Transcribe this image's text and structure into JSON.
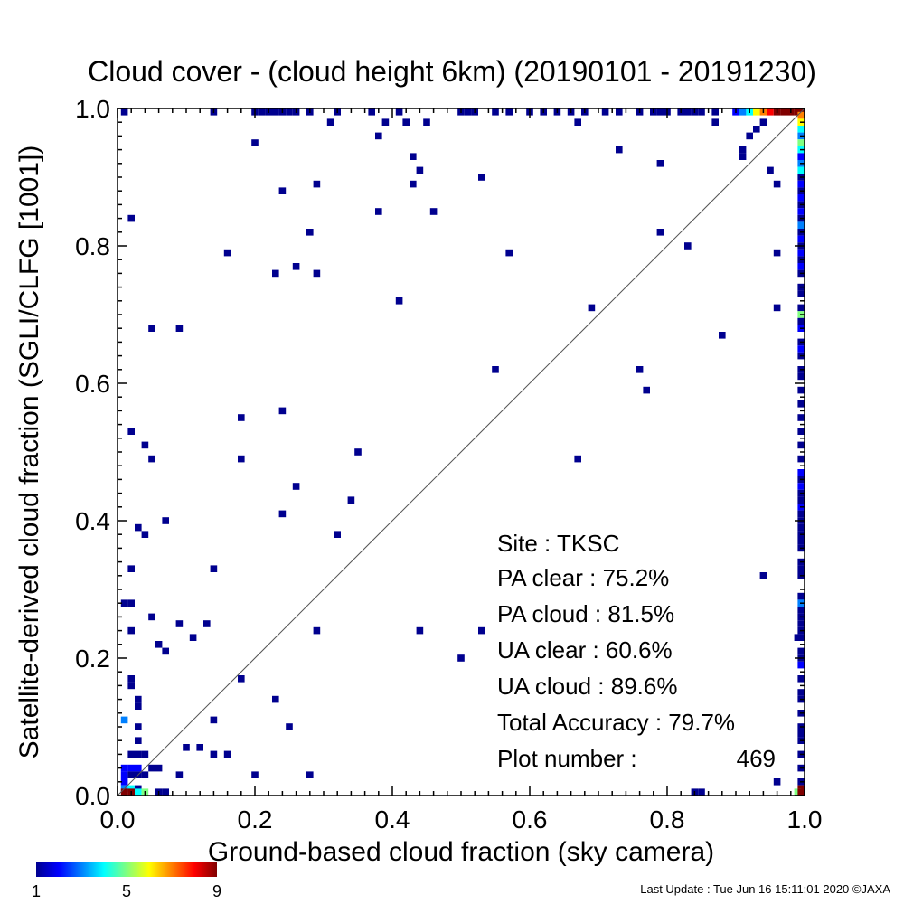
{
  "chart_data": {
    "type": "heatmap",
    "title": "Cloud cover - (cloud height 6km)  (20190101 - 20191230)",
    "xlabel": "Ground-based cloud fraction (sky camera)",
    "ylabel": "Satellite-derived cloud fraction (SGLI/CLFG [1001])",
    "xlim": [
      0,
      1
    ],
    "ylim": [
      0,
      1
    ],
    "x_ticks": [
      "0.0",
      "0.2",
      "0.4",
      "0.6",
      "0.8",
      "1.0"
    ],
    "y_ticks": [
      "0.0",
      "0.2",
      "0.4",
      "0.6",
      "0.8",
      "1.0"
    ],
    "reference_line": "y = x",
    "colorbar": {
      "min": 1,
      "max": 9,
      "tick_labels": [
        "1",
        "5",
        "9"
      ]
    },
    "stats": {
      "site": "Site : TKSC",
      "pa_clear": "PA clear :  75.2%",
      "pa_cloud": "PA cloud :  81.5%",
      "ua_clear": "UA clear :  60.6%",
      "ua_cloud": "UA cloud :  89.6%",
      "total_accuracy": "Total Accuracy :  79.7%",
      "plot_number_label": "Plot number :",
      "plot_number_value": "469"
    },
    "cells": [
      [
        0.02,
        0.84,
        1
      ],
      [
        0.02,
        0.53,
        1
      ],
      [
        0.04,
        0.51,
        1
      ],
      [
        0.05,
        0.49,
        1
      ],
      [
        0.03,
        0.39,
        1
      ],
      [
        0.04,
        0.38,
        1
      ],
      [
        0.07,
        0.4,
        1
      ],
      [
        0.02,
        0.33,
        1
      ],
      [
        0.01,
        0.28,
        1
      ],
      [
        0.02,
        0.28,
        1
      ],
      [
        0.02,
        0.24,
        1
      ],
      [
        0.05,
        0.26,
        1
      ],
      [
        0.06,
        0.22,
        1
      ],
      [
        0.07,
        0.21,
        1
      ],
      [
        0.09,
        0.25,
        1
      ],
      [
        0.11,
        0.23,
        1
      ],
      [
        0.13,
        0.25,
        1
      ],
      [
        0.14,
        0.33,
        1
      ],
      [
        0.02,
        0.17,
        1
      ],
      [
        0.02,
        0.16,
        1
      ],
      [
        0.03,
        0.14,
        1
      ],
      [
        0.03,
        0.13,
        1
      ],
      [
        0.01,
        0.11,
        3
      ],
      [
        0.03,
        0.1,
        1
      ],
      [
        0.03,
        0.08,
        1
      ],
      [
        0.02,
        0.06,
        1
      ],
      [
        0.03,
        0.06,
        1
      ],
      [
        0.04,
        0.06,
        1
      ],
      [
        0.01,
        0.04,
        2
      ],
      [
        0.02,
        0.04,
        2
      ],
      [
        0.03,
        0.04,
        2
      ],
      [
        0.01,
        0.03,
        2
      ],
      [
        0.02,
        0.03,
        1
      ],
      [
        0.03,
        0.03,
        1
      ],
      [
        0.04,
        0.03,
        1
      ],
      [
        0.01,
        0.02,
        2
      ],
      [
        0.01,
        0.01,
        3
      ],
      [
        0.02,
        0.01,
        4
      ],
      [
        0.03,
        0.01,
        1
      ],
      [
        0.01,
        0.0,
        9
      ],
      [
        0.02,
        0.0,
        9
      ],
      [
        0.03,
        0.0,
        4
      ],
      [
        0.04,
        0.0,
        5
      ],
      [
        0.06,
        0.0,
        1
      ],
      [
        0.07,
        0.0,
        1
      ],
      [
        0.05,
        0.04,
        1
      ],
      [
        0.06,
        0.04,
        1
      ],
      [
        0.09,
        0.03,
        1
      ],
      [
        0.1,
        0.07,
        1
      ],
      [
        0.12,
        0.07,
        1
      ],
      [
        0.14,
        0.06,
        1
      ],
      [
        0.16,
        0.06,
        1
      ],
      [
        0.14,
        0.11,
        1
      ],
      [
        0.18,
        0.17,
        1
      ],
      [
        0.2,
        0.03,
        1
      ],
      [
        0.23,
        0.14,
        1
      ],
      [
        0.25,
        0.1,
        1
      ],
      [
        0.28,
        0.03,
        1
      ],
      [
        0.29,
        0.24,
        1
      ],
      [
        0.44,
        0.24,
        1
      ],
      [
        0.5,
        0.2,
        1
      ],
      [
        0.53,
        0.24,
        1
      ],
      [
        0.32,
        0.38,
        1
      ],
      [
        0.34,
        0.43,
        1
      ],
      [
        0.35,
        0.5,
        1
      ],
      [
        0.24,
        0.41,
        1
      ],
      [
        0.26,
        0.45,
        1
      ],
      [
        0.18,
        0.49,
        1
      ],
      [
        0.18,
        0.55,
        1
      ],
      [
        0.24,
        0.56,
        1
      ],
      [
        0.05,
        0.68,
        1
      ],
      [
        0.09,
        0.68,
        1
      ],
      [
        0.41,
        0.72,
        1
      ],
      [
        0.16,
        0.79,
        1
      ],
      [
        0.23,
        0.76,
        1
      ],
      [
        0.26,
        0.77,
        1
      ],
      [
        0.29,
        0.76,
        1
      ],
      [
        0.28,
        0.82,
        1
      ],
      [
        0.24,
        0.88,
        1
      ],
      [
        0.29,
        0.89,
        1
      ],
      [
        0.38,
        0.85,
        1
      ],
      [
        0.43,
        0.89,
        1
      ],
      [
        0.44,
        0.91,
        1
      ],
      [
        0.43,
        0.93,
        1
      ],
      [
        0.46,
        0.85,
        1
      ],
      [
        0.53,
        0.9,
        1
      ],
      [
        0.57,
        0.79,
        1
      ],
      [
        0.2,
        0.95,
        1
      ],
      [
        0.38,
        0.96,
        1
      ],
      [
        0.31,
        0.98,
        1
      ],
      [
        0.39,
        0.98,
        1
      ],
      [
        0.42,
        0.98,
        1
      ],
      [
        0.45,
        0.98,
        1
      ],
      [
        0.67,
        0.98,
        1
      ],
      [
        0.73,
        0.94,
        1
      ],
      [
        0.79,
        0.92,
        1
      ],
      [
        0.79,
        0.82,
        1
      ],
      [
        0.83,
        0.8,
        1
      ],
      [
        0.88,
        0.67,
        1
      ],
      [
        0.69,
        0.71,
        1
      ],
      [
        0.55,
        0.62,
        1
      ],
      [
        0.67,
        0.49,
        1
      ],
      [
        0.76,
        0.62,
        1
      ],
      [
        0.77,
        0.59,
        1
      ],
      [
        0.94,
        0.32,
        1
      ],
      [
        0.96,
        0.71,
        1
      ],
      [
        0.96,
        0.79,
        1
      ],
      [
        0.91,
        0.93,
        1
      ],
      [
        0.91,
        0.94,
        1
      ],
      [
        0.95,
        0.91,
        1
      ],
      [
        0.96,
        0.89,
        1
      ],
      [
        0.96,
        0.02,
        1
      ],
      [
        0.85,
        0.0,
        1
      ],
      [
        0.84,
        0.0,
        1
      ],
      [
        0.87,
        0.98,
        1
      ],
      [
        0.92,
        0.96,
        1
      ],
      [
        0.93,
        0.97,
        1
      ],
      [
        0.94,
        0.98,
        1
      ],
      [
        0.01,
        1.0,
        1
      ],
      [
        0.14,
        1.0,
        1
      ],
      [
        0.2,
        1.0,
        1
      ],
      [
        0.21,
        1.0,
        1
      ],
      [
        0.22,
        1.0,
        1
      ],
      [
        0.23,
        1.0,
        1
      ],
      [
        0.24,
        1.0,
        1
      ],
      [
        0.25,
        1.0,
        1
      ],
      [
        0.26,
        1.0,
        1
      ],
      [
        0.28,
        1.0,
        1
      ],
      [
        0.32,
        1.0,
        1
      ],
      [
        0.37,
        1.0,
        1
      ],
      [
        0.41,
        1.0,
        1
      ],
      [
        0.5,
        1.0,
        1
      ],
      [
        0.51,
        1.0,
        1
      ],
      [
        0.52,
        1.0,
        1
      ],
      [
        0.55,
        1.0,
        1
      ],
      [
        0.57,
        1.0,
        1
      ],
      [
        0.6,
        1.0,
        1
      ],
      [
        0.62,
        1.0,
        1
      ],
      [
        0.64,
        1.0,
        1
      ],
      [
        0.66,
        1.0,
        1
      ],
      [
        0.68,
        1.0,
        1
      ],
      [
        0.71,
        1.0,
        1
      ],
      [
        0.73,
        1.0,
        1
      ],
      [
        0.76,
        1.0,
        1
      ],
      [
        0.78,
        1.0,
        1
      ],
      [
        0.79,
        1.0,
        1
      ],
      [
        0.8,
        1.0,
        1
      ],
      [
        0.82,
        1.0,
        1
      ],
      [
        0.83,
        1.0,
        1
      ],
      [
        0.84,
        1.0,
        1
      ],
      [
        0.85,
        1.0,
        1
      ],
      [
        0.87,
        1.0,
        1
      ],
      [
        0.9,
        1.0,
        2
      ],
      [
        0.91,
        1.0,
        3
      ],
      [
        0.92,
        1.0,
        4
      ],
      [
        0.93,
        1.0,
        6
      ],
      [
        0.94,
        1.0,
        7
      ],
      [
        0.95,
        1.0,
        8
      ],
      [
        0.96,
        1.0,
        9
      ],
      [
        0.97,
        1.0,
        9
      ],
      [
        0.98,
        1.0,
        9
      ],
      [
        0.99,
        1.0,
        9
      ],
      [
        1.0,
        1.0,
        9
      ],
      [
        1.0,
        0.99,
        7
      ],
      [
        1.0,
        0.98,
        6
      ],
      [
        1.0,
        0.97,
        4
      ],
      [
        1.0,
        0.96,
        3
      ],
      [
        1.0,
        0.95,
        5
      ],
      [
        1.0,
        0.94,
        4
      ],
      [
        1.0,
        0.93,
        2
      ],
      [
        1.0,
        0.92,
        3
      ],
      [
        1.0,
        0.91,
        4
      ],
      [
        1.0,
        0.9,
        1
      ],
      [
        1.0,
        0.89,
        2
      ],
      [
        1.0,
        0.88,
        1
      ],
      [
        1.0,
        0.87,
        2
      ],
      [
        1.0,
        0.86,
        1
      ],
      [
        1.0,
        0.85,
        2
      ],
      [
        1.0,
        0.84,
        1
      ],
      [
        1.0,
        0.83,
        3
      ],
      [
        1.0,
        0.82,
        1
      ],
      [
        1.0,
        0.81,
        2
      ],
      [
        1.0,
        0.8,
        1
      ],
      [
        1.0,
        0.79,
        2
      ],
      [
        1.0,
        0.78,
        1
      ],
      [
        1.0,
        0.77,
        2
      ],
      [
        1.0,
        0.76,
        1
      ],
      [
        1.0,
        0.74,
        1
      ],
      [
        1.0,
        0.73,
        1
      ],
      [
        1.0,
        0.71,
        1
      ],
      [
        1.0,
        0.7,
        5
      ],
      [
        1.0,
        0.69,
        1
      ],
      [
        1.0,
        0.68,
        2
      ],
      [
        1.0,
        0.66,
        1
      ],
      [
        1.0,
        0.65,
        2
      ],
      [
        1.0,
        0.64,
        1
      ],
      [
        1.0,
        0.62,
        1
      ],
      [
        1.0,
        0.61,
        1
      ],
      [
        1.0,
        0.59,
        1
      ],
      [
        1.0,
        0.57,
        1
      ],
      [
        1.0,
        0.55,
        1
      ],
      [
        1.0,
        0.53,
        1
      ],
      [
        1.0,
        0.51,
        1
      ],
      [
        1.0,
        0.49,
        1
      ],
      [
        1.0,
        0.47,
        2
      ],
      [
        1.0,
        0.46,
        1
      ],
      [
        1.0,
        0.45,
        2
      ],
      [
        1.0,
        0.44,
        1
      ],
      [
        1.0,
        0.43,
        1
      ],
      [
        1.0,
        0.42,
        2
      ],
      [
        1.0,
        0.41,
        1
      ],
      [
        1.0,
        0.4,
        1
      ],
      [
        1.0,
        0.39,
        1
      ],
      [
        1.0,
        0.38,
        1
      ],
      [
        1.0,
        0.37,
        1
      ],
      [
        1.0,
        0.36,
        1
      ],
      [
        1.0,
        0.34,
        1
      ],
      [
        1.0,
        0.33,
        1
      ],
      [
        1.0,
        0.32,
        1
      ],
      [
        1.0,
        0.29,
        1
      ],
      [
        1.0,
        0.28,
        3
      ],
      [
        1.0,
        0.27,
        1
      ],
      [
        1.0,
        0.26,
        1
      ],
      [
        1.0,
        0.25,
        1
      ],
      [
        1.0,
        0.24,
        1
      ],
      [
        1.0,
        0.23,
        1
      ],
      [
        0.99,
        0.23,
        1
      ],
      [
        1.0,
        0.21,
        1
      ],
      [
        1.0,
        0.2,
        1
      ],
      [
        1.0,
        0.19,
        2
      ],
      [
        1.0,
        0.17,
        1
      ],
      [
        1.0,
        0.15,
        1
      ],
      [
        1.0,
        0.14,
        1
      ],
      [
        1.0,
        0.12,
        1
      ],
      [
        1.0,
        0.1,
        1
      ],
      [
        1.0,
        0.09,
        1
      ],
      [
        1.0,
        0.08,
        1
      ],
      [
        1.0,
        0.06,
        1
      ],
      [
        1.0,
        0.04,
        1
      ],
      [
        1.0,
        0.02,
        1
      ],
      [
        1.0,
        0.01,
        9
      ],
      [
        0.99,
        0.0,
        5
      ],
      [
        1.0,
        0.0,
        9
      ]
    ]
  },
  "footer": {
    "last_update": "Last Update : Tue Jun 16 15:11:01 2020  ©JAXA"
  }
}
